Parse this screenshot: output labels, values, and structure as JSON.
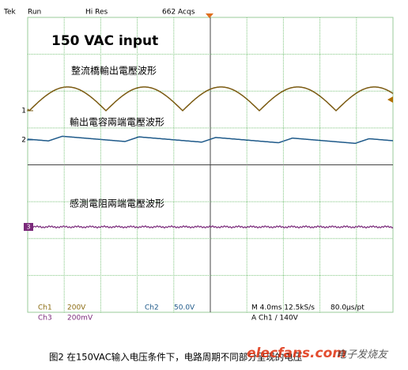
{
  "status_bar": {
    "brand": "Tek",
    "state": "Run",
    "mode": "Hi Res",
    "acquisitions": "662 Acqs"
  },
  "annotations": {
    "input": "150 VAC input",
    "trace1": "整流橋輸出電壓波形",
    "trace2": "輸出電容兩端電壓波形",
    "trace3": "感測電阻兩端電壓波形"
  },
  "channel_markers": [
    "1",
    "2",
    "3"
  ],
  "readout": {
    "ch1_label": "Ch1",
    "ch1_scale": "200V",
    "ch2_label": "Ch2",
    "ch2_scale": "50.0V",
    "timebase": "M 4.0ms 12.5kS/s",
    "resolution": "80.0μs/pt",
    "ch3_label": "Ch3",
    "ch3_scale": "200mV",
    "trigger": "A  Ch1 ∕ 140V"
  },
  "caption": "图2 在150VAC输入电压条件下，电路周期不同部分呈现的电压",
  "watermark": {
    "site": "elecfans.com",
    "brand": "电子发烧友"
  }
}
